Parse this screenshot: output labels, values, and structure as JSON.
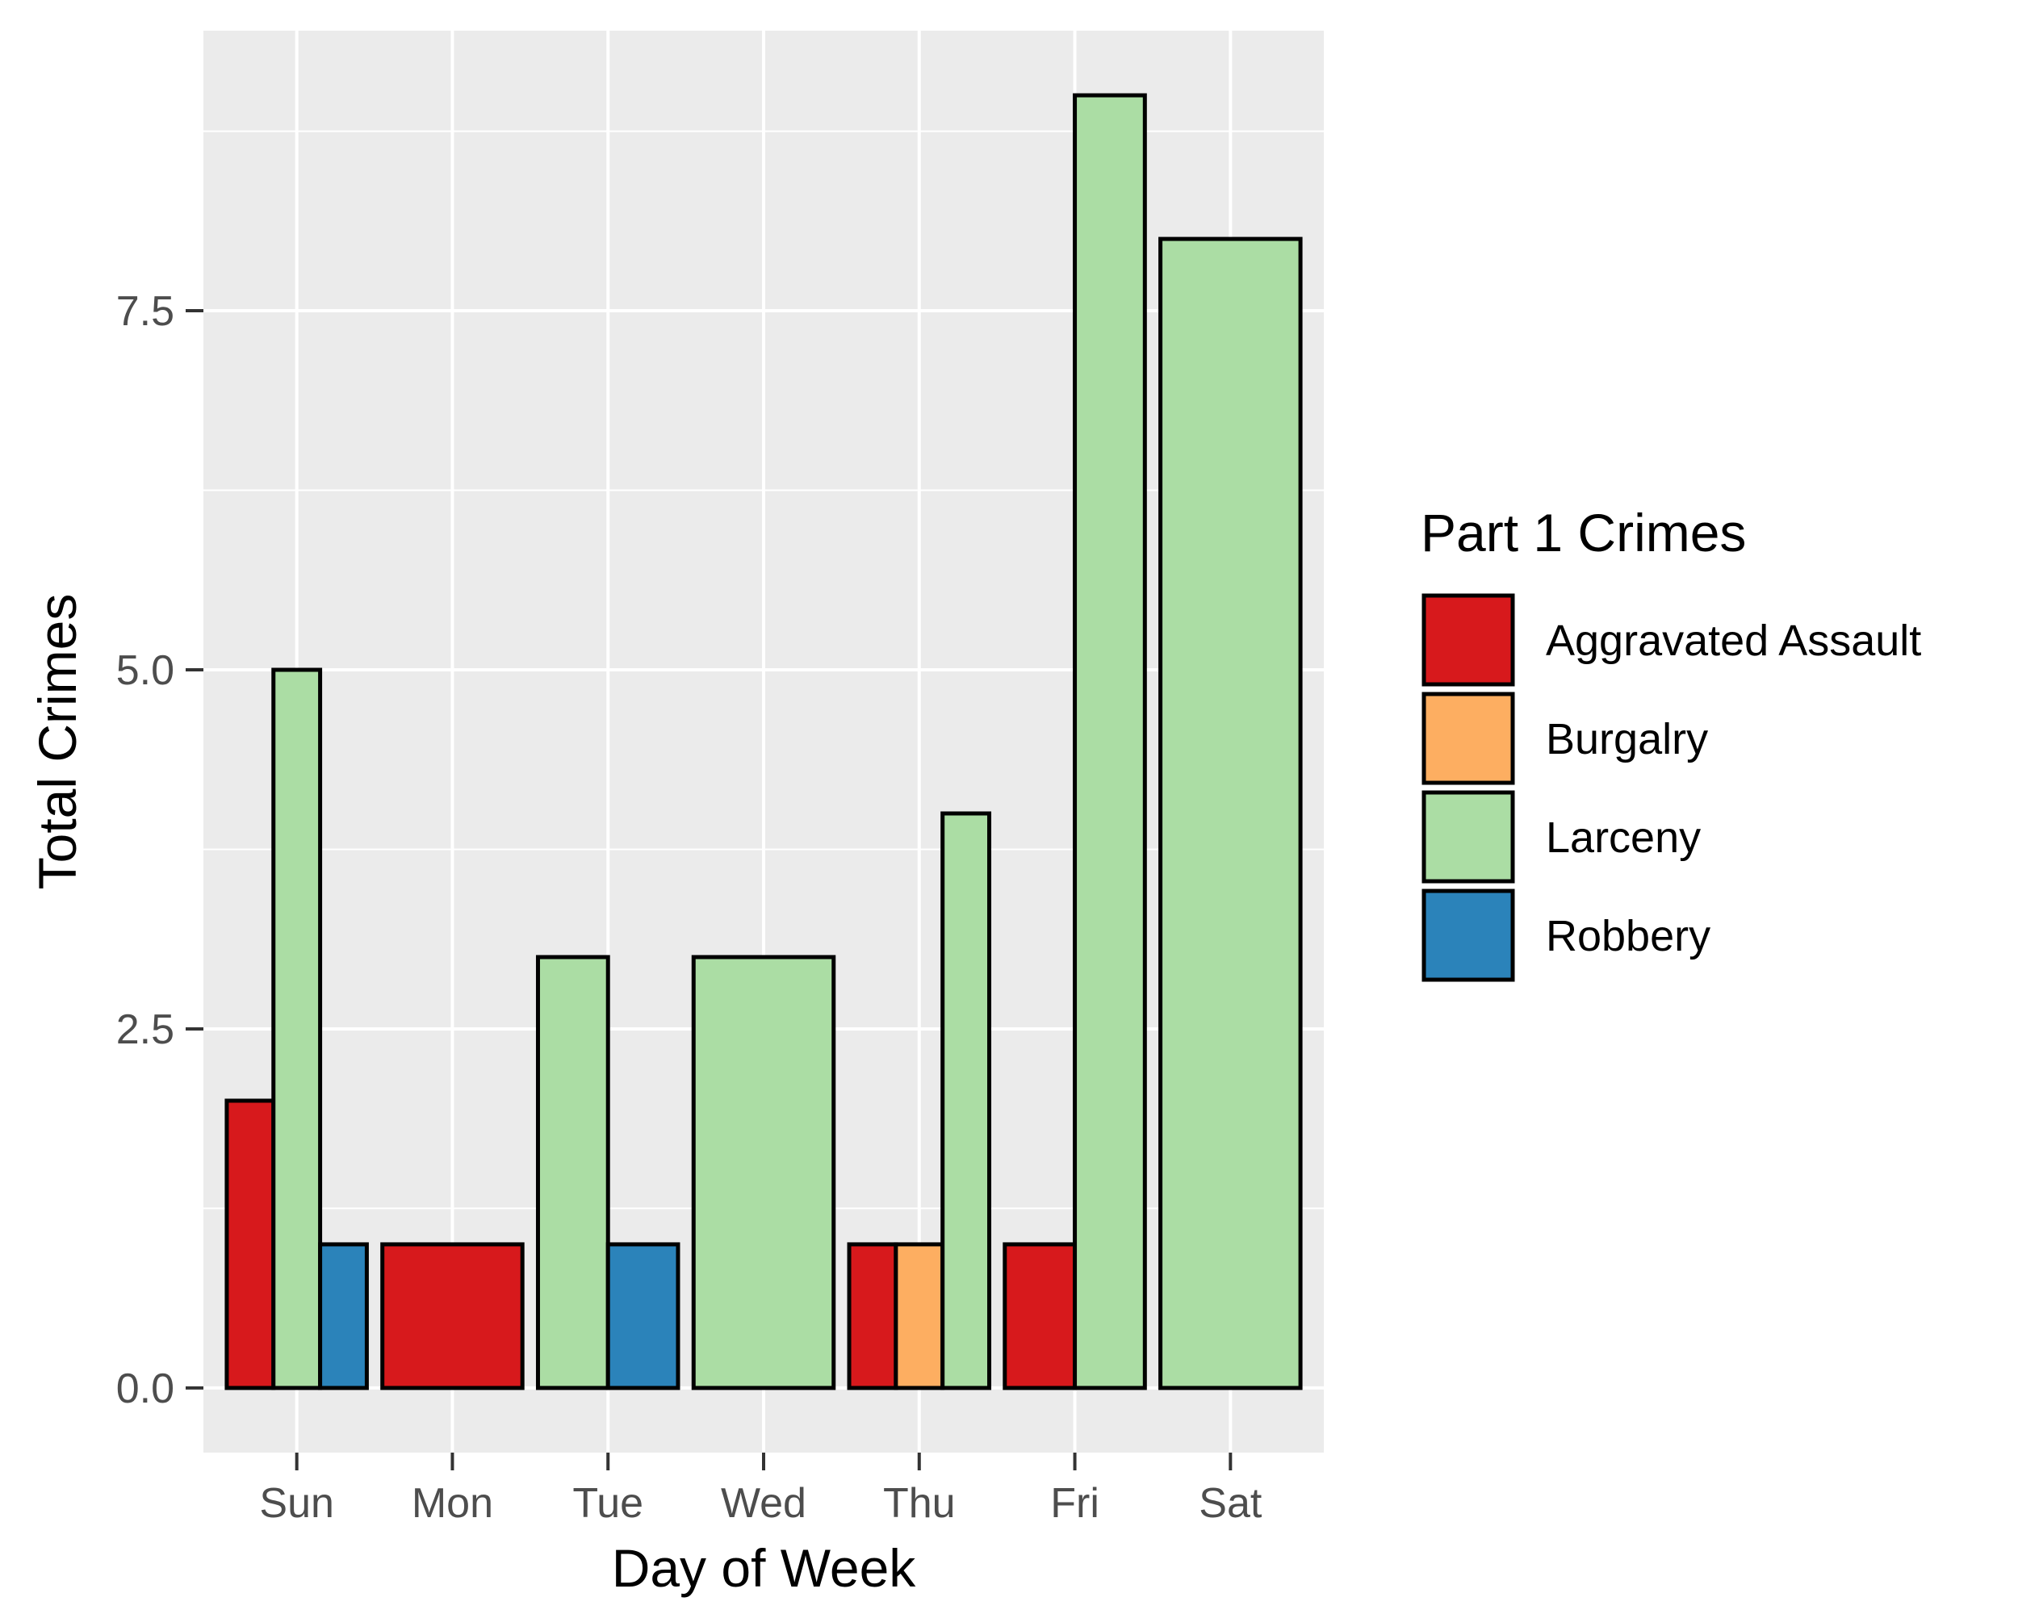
{
  "chart_data": {
    "type": "bar",
    "xlabel": "Day of Week",
    "ylabel": "Total Crimes",
    "categories": [
      "Sun",
      "Mon",
      "Tue",
      "Wed",
      "Thu",
      "Fri",
      "Sat"
    ],
    "ylim": [
      -0.45,
      9.45
    ],
    "yticks": [
      0.0,
      2.5,
      5.0,
      7.5
    ],
    "ytick_labels": [
      "0.0",
      "2.5",
      "5.0",
      "7.5"
    ],
    "grid": true,
    "legend": {
      "title": "Part 1 Crimes",
      "position": "right"
    },
    "series": [
      {
        "name": "Aggravated Assault",
        "color": "#d7191c"
      },
      {
        "name": "Burgalry",
        "color": "#fdae61"
      },
      {
        "name": "Larceny",
        "color": "#abdda4"
      },
      {
        "name": "Robbery",
        "color": "#2b83ba"
      }
    ],
    "bars": [
      {
        "category": "Sun",
        "series": "Aggravated Assault",
        "value": 2
      },
      {
        "category": "Sun",
        "series": "Larceny",
        "value": 5
      },
      {
        "category": "Sun",
        "series": "Robbery",
        "value": 1
      },
      {
        "category": "Mon",
        "series": "Aggravated Assault",
        "value": 1
      },
      {
        "category": "Tue",
        "series": "Larceny",
        "value": 3
      },
      {
        "category": "Tue",
        "series": "Robbery",
        "value": 1
      },
      {
        "category": "Wed",
        "series": "Larceny",
        "value": 3
      },
      {
        "category": "Thu",
        "series": "Aggravated Assault",
        "value": 1
      },
      {
        "category": "Thu",
        "series": "Burgalry",
        "value": 1
      },
      {
        "category": "Thu",
        "series": "Larceny",
        "value": 4
      },
      {
        "category": "Fri",
        "series": "Aggravated Assault",
        "value": 1
      },
      {
        "category": "Fri",
        "series": "Larceny",
        "value": 9
      },
      {
        "category": "Sat",
        "series": "Larceny",
        "value": 8
      }
    ]
  }
}
